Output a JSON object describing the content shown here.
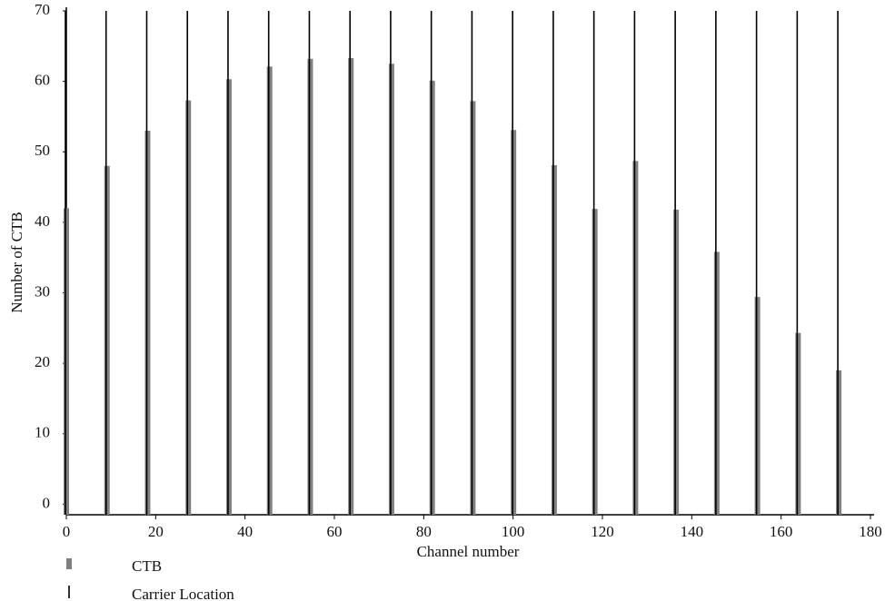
{
  "chart_data": {
    "type": "bar",
    "x_label": "Channel number",
    "y_label": "Number of CTB",
    "x": [
      0,
      9.1,
      18.2,
      27.3,
      36.4,
      45.5,
      54.6,
      63.7,
      72.8,
      81.9,
      91,
      100.1,
      109.2,
      118.3,
      127.4,
      136.5,
      145.6,
      154.7,
      163.8,
      172.9
    ],
    "series": [
      {
        "name": "CTB",
        "type": "bar",
        "color": "#808080",
        "values": [
          42,
          48,
          53,
          57.3,
          60.3,
          62.1,
          63.2,
          63.3,
          62.5,
          60.1,
          57.2,
          53.1,
          48.1,
          41.9,
          48.7,
          41.8,
          35.8,
          29.4,
          24.3,
          19
        ]
      },
      {
        "name": "Carrier Location",
        "type": "stem",
        "color": "#000000",
        "values": [
          70,
          70,
          70,
          70,
          70,
          70,
          70,
          70,
          70,
          70,
          70,
          70,
          70,
          70,
          70,
          70,
          70,
          70,
          70,
          70
        ]
      }
    ],
    "xlim": [
      0,
      180
    ],
    "xticks": [
      0,
      20,
      40,
      60,
      80,
      100,
      120,
      140,
      160,
      180
    ],
    "ylim": [
      -1.5,
      70
    ],
    "yticks": [
      0,
      10,
      20,
      30,
      40,
      50,
      60,
      70
    ],
    "grid": false,
    "legend": "bottom-left"
  }
}
